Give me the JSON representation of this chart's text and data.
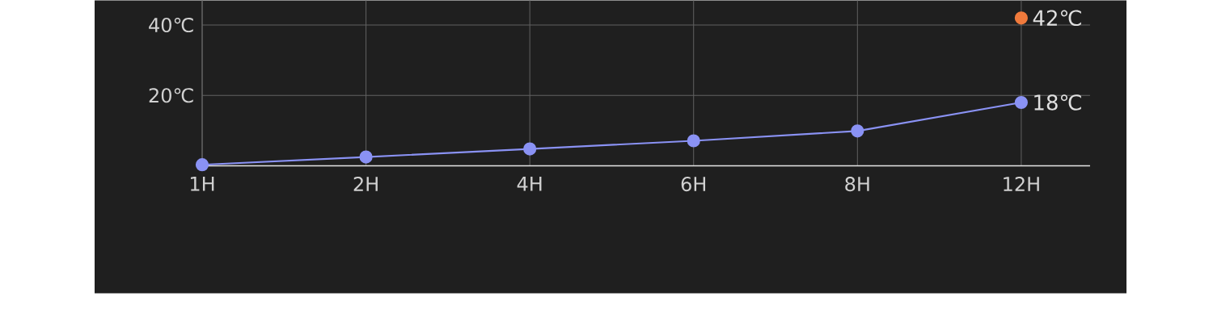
{
  "chart_data": {
    "type": "line",
    "categories": [
      "1H",
      "2H",
      "4H",
      "6H",
      "8H",
      "12H"
    ],
    "series": [
      {
        "color": "#f07a3c",
        "values": [
          null,
          null,
          null,
          null,
          null,
          42
        ],
        "value_labels": [
          null,
          null,
          null,
          null,
          null,
          "42℃"
        ]
      },
      {
        "color": "#8a92f4",
        "values": [
          0.3,
          2.5,
          4.8,
          7.1,
          9.9,
          18
        ],
        "value_labels": [
          null,
          null,
          null,
          null,
          null,
          "18℃"
        ]
      }
    ],
    "ylim": [
      0,
      47
    ],
    "yticks": [
      {
        "value": 20,
        "label": "20℃"
      },
      {
        "value": 40,
        "label": "40℃"
      }
    ],
    "grid": true,
    "marker": "circle"
  }
}
